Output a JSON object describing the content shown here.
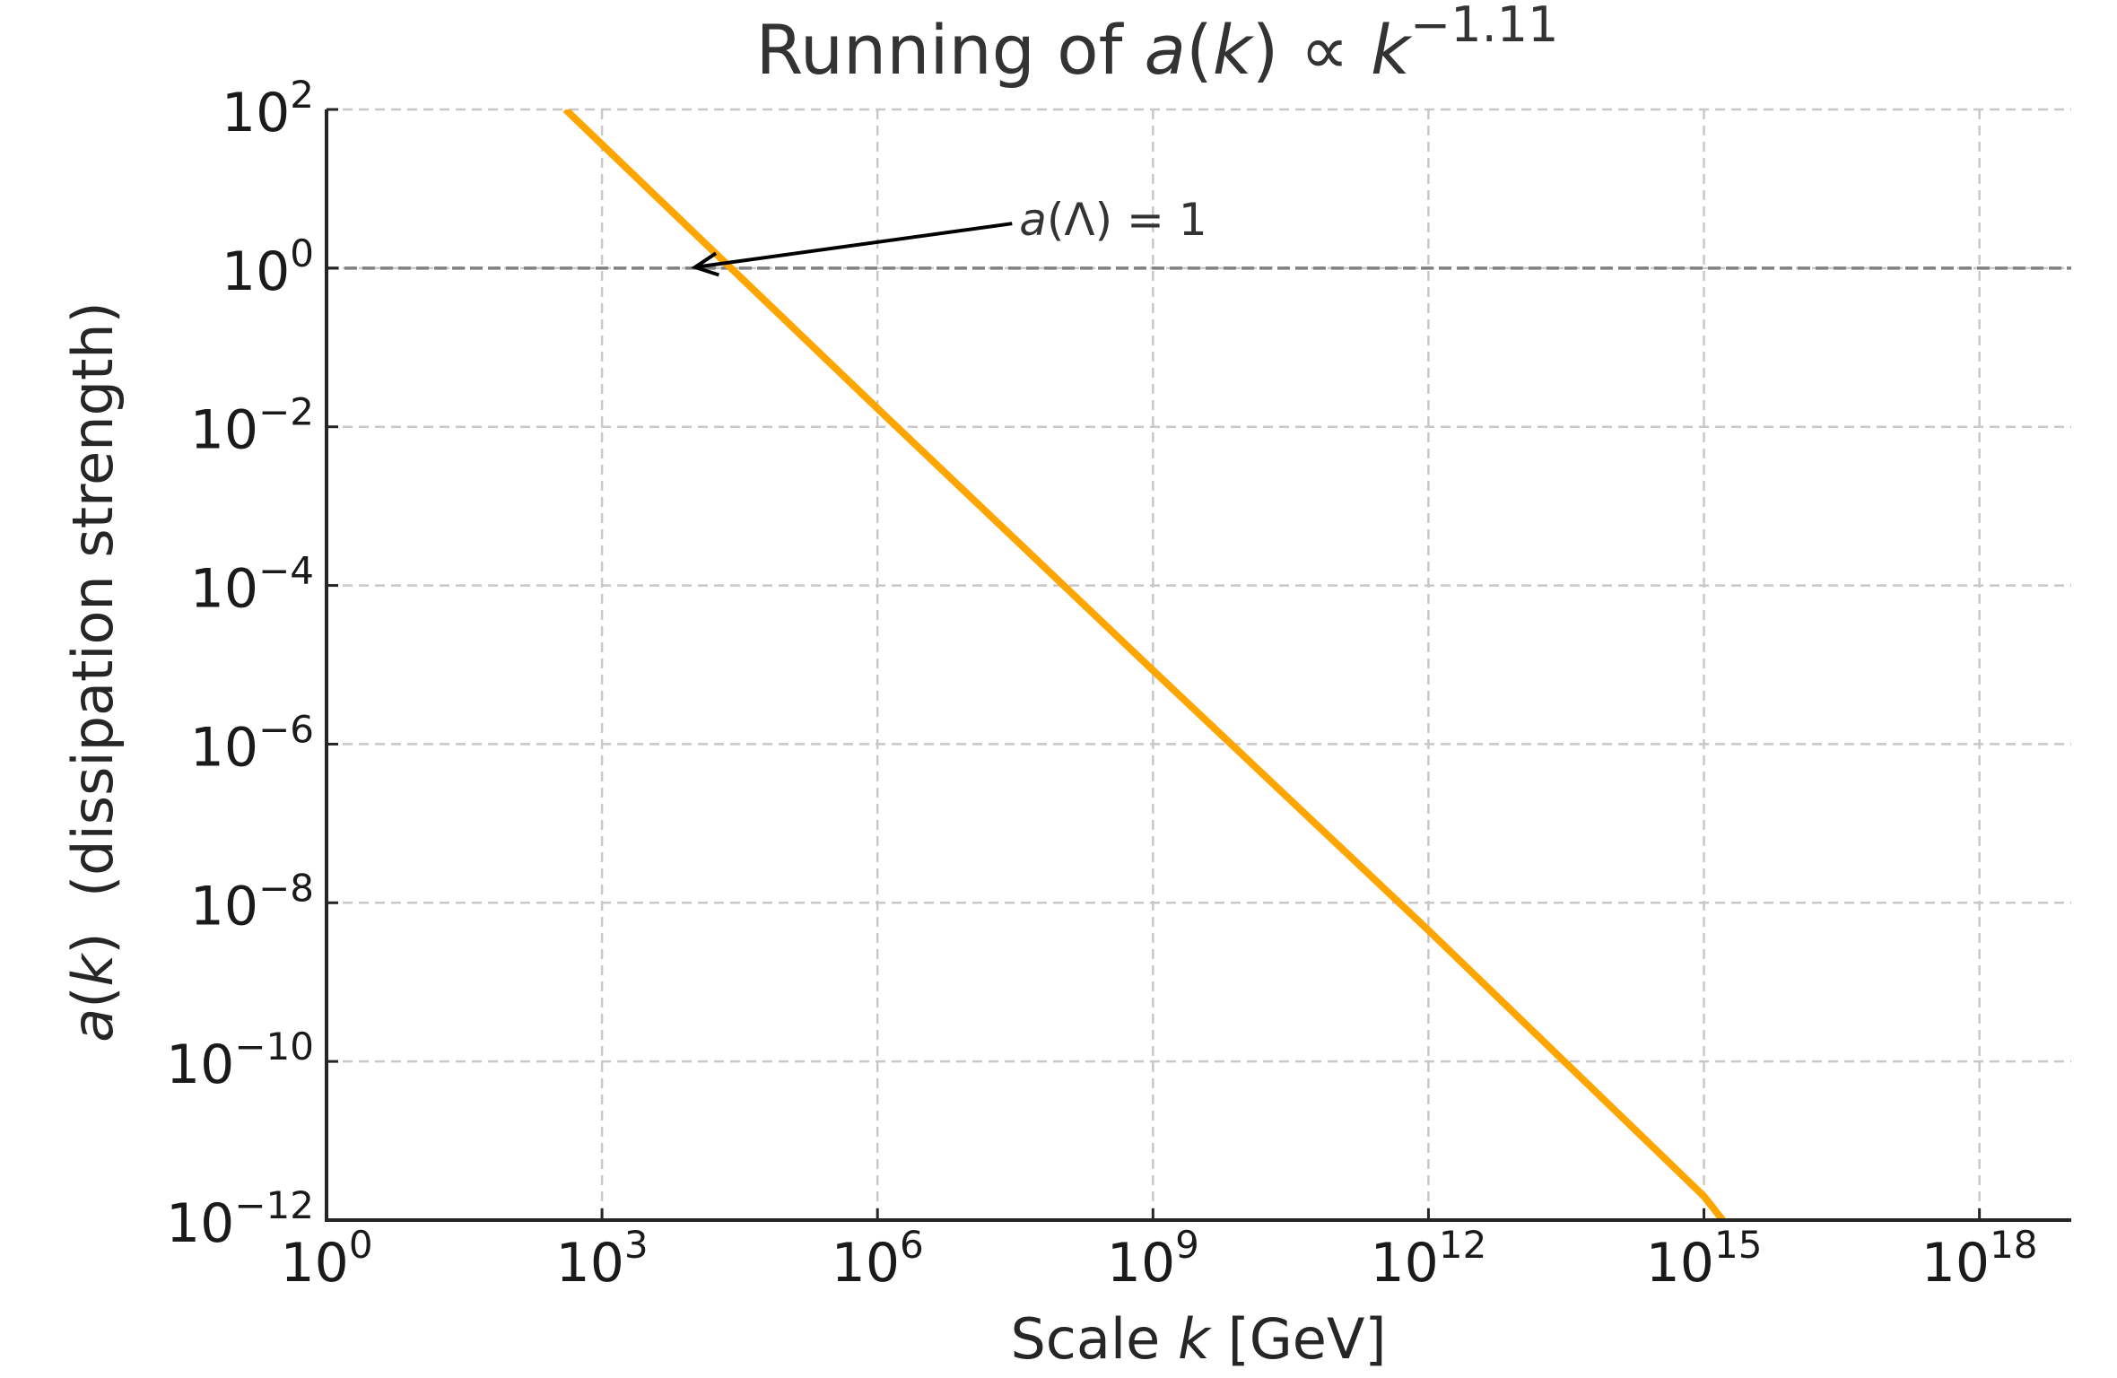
{
  "chart_data": {
    "type": "line",
    "title": {
      "prefix": "Running of ",
      "math_a": "a",
      "math_open": "(",
      "math_k": "k",
      "math_close": ")",
      "prop": " ∝ ",
      "math_k2": "k",
      "exponent": "−1.11"
    },
    "xlabel": {
      "prefix": "Scale ",
      "var": "k",
      "unit": " [GeV]"
    },
    "ylabel": {
      "var_a": "a",
      "open": "(",
      "var_k": "k",
      "close": ")",
      "suffix": "  (dissipation strength)"
    },
    "x_scale": "log",
    "y_scale": "log",
    "xlim": [
      1,
      1e+19
    ],
    "ylim": [
      1e-12,
      100
    ],
    "x_ticks": [
      {
        "value": 1,
        "base": "10",
        "exp": "0"
      },
      {
        "value": 1000.0,
        "base": "10",
        "exp": "3"
      },
      {
        "value": 1000000.0,
        "base": "10",
        "exp": "6"
      },
      {
        "value": 1000000000.0,
        "base": "10",
        "exp": "9"
      },
      {
        "value": 1000000000000.0,
        "base": "10",
        "exp": "12"
      },
      {
        "value": 1000000000000000.0,
        "base": "10",
        "exp": "15"
      },
      {
        "value": 1e+18,
        "base": "10",
        "exp": "18"
      }
    ],
    "y_ticks": [
      {
        "value": 100,
        "base": "10",
        "exp": "2"
      },
      {
        "value": 1,
        "base": "10",
        "exp": "0"
      },
      {
        "value": 0.01,
        "base": "10",
        "exp": "−2"
      },
      {
        "value": 0.0001,
        "base": "10",
        "exp": "−4"
      },
      {
        "value": 1e-06,
        "base": "10",
        "exp": "−6"
      },
      {
        "value": 1e-08,
        "base": "10",
        "exp": "−8"
      },
      {
        "value": 1e-10,
        "base": "10",
        "exp": "−10"
      },
      {
        "value": 1e-12,
        "base": "10",
        "exp": "−12"
      }
    ],
    "grid": true,
    "series": [
      {
        "color": "#FFA500",
        "x": [
          400,
          10000.0,
          1000000.0,
          1000000000.0,
          1000000000000.0,
          1000000000000000.0,
          1600000000000000.0
        ],
        "y": [
          100,
          2.8,
          0.017,
          8.5e-06,
          4.5e-09,
          2e-12,
          1e-12
        ]
      }
    ],
    "reference_line": {
      "y": 1,
      "style": "dashed",
      "color": "#808080"
    },
    "annotation": {
      "text_a": "a",
      "text_open": "(",
      "text_lambda": "Λ",
      "text_close": ")",
      "text_eq": " = 1",
      "point": [
        9000,
        1
      ],
      "text_anchor": [
        35000000.0,
        3.2
      ]
    }
  }
}
